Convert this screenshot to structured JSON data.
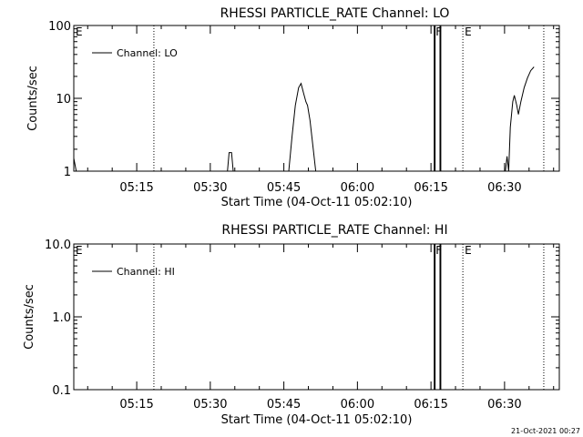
{
  "footer_timestamp": "21-Oct-2021 00:27",
  "chart_data": [
    {
      "type": "line",
      "title": "RHESSI PARTICLE_RATE Channel: LO",
      "xlabel": "Start Time (04-Oct-11 05:02:10)",
      "ylabel": "Counts/sec",
      "y_scale": "log",
      "ylim": [
        1,
        100
      ],
      "yticks": [
        1,
        10,
        100
      ],
      "ytick_labels": [
        "1",
        "10",
        "100"
      ],
      "xlim": [
        "05:02:10",
        "06:41:10"
      ],
      "xticks": [
        "05:15",
        "05:30",
        "05:45",
        "06:00",
        "06:15",
        "06:30"
      ],
      "grid": false,
      "legend_position": "top-left",
      "series": [
        {
          "name": "Channel: LO",
          "points": [
            [
              "05:02:10",
              1.5
            ],
            [
              "05:02:40",
              1.0
            ],
            [
              "05:33:30",
              1.0
            ],
            [
              "05:33:50",
              1.8
            ],
            [
              "05:34:20",
              1.8
            ],
            [
              "05:34:40",
              1.0
            ],
            [
              "05:46:00",
              1.0
            ],
            [
              "05:46:40",
              3.0
            ],
            [
              "05:47:20",
              8.0
            ],
            [
              "05:48:00",
              14.0
            ],
            [
              "05:48:30",
              16.0
            ],
            [
              "05:49:00",
              12.0
            ],
            [
              "05:49:30",
              9.0
            ],
            [
              "05:49:50",
              8.0
            ],
            [
              "05:50:20",
              5.0
            ],
            [
              "05:51:00",
              2.0
            ],
            [
              "05:51:30",
              1.0
            ],
            [
              "06:15:40",
              1.0
            ],
            [
              "06:15:40",
              100.0
            ],
            [
              "06:17:00",
              100.0
            ],
            [
              "06:17:00",
              1.0
            ],
            [
              "06:15:50",
              1.0
            ],
            [
              "06:15:50",
              100.0
            ],
            [
              "06:16:50",
              100.0
            ],
            [
              "06:16:50",
              1.0
            ],
            [
              "06:30:10",
              1.0
            ],
            [
              "06:30:30",
              1.6
            ],
            [
              "06:30:50",
              1.0
            ],
            [
              "06:31:10",
              4.0
            ],
            [
              "06:31:40",
              9.0
            ],
            [
              "06:32:00",
              11.0
            ],
            [
              "06:32:30",
              8.0
            ],
            [
              "06:32:50",
              6.0
            ],
            [
              "06:33:20",
              9.0
            ],
            [
              "06:34:00",
              14.0
            ],
            [
              "06:34:40",
              19.0
            ],
            [
              "06:35:20",
              24.0
            ],
            [
              "06:36:00",
              27.0
            ]
          ]
        }
      ],
      "markers": [
        {
          "label": "E",
          "time": "05:02:10",
          "style": "dotted"
        },
        {
          "label": "",
          "time": "05:18:30",
          "style": "dotted"
        },
        {
          "label": "F",
          "time": "06:16:20",
          "style": "solid"
        },
        {
          "label": "E",
          "time": "06:21:30",
          "style": "dotted"
        },
        {
          "label": "",
          "time": "06:38:00",
          "style": "dotted"
        }
      ]
    },
    {
      "type": "line",
      "title": "RHESSI PARTICLE_RATE Channel: HI",
      "xlabel": "Start Time (04-Oct-11 05:02:10)",
      "ylabel": "Counts/sec",
      "y_scale": "log",
      "ylim": [
        0.1,
        10
      ],
      "yticks": [
        0.1,
        1,
        10
      ],
      "ytick_labels": [
        "0.1",
        "1.0",
        "10.0"
      ],
      "xlim": [
        "05:02:10",
        "06:41:10"
      ],
      "xticks": [
        "05:15",
        "05:30",
        "05:45",
        "06:00",
        "06:15",
        "06:30"
      ],
      "grid": false,
      "legend_position": "top-left",
      "series": [
        {
          "name": "Channel: HI",
          "points": [
            [
              "06:15:40",
              0.1
            ],
            [
              "06:15:40",
              10.0
            ],
            [
              "06:17:00",
              10.0
            ],
            [
              "06:17:00",
              0.1
            ],
            [
              "06:15:50",
              0.1
            ],
            [
              "06:15:50",
              10.0
            ],
            [
              "06:16:50",
              10.0
            ],
            [
              "06:16:50",
              0.1
            ]
          ]
        }
      ],
      "markers": [
        {
          "label": "E",
          "time": "05:02:10",
          "style": "dotted"
        },
        {
          "label": "",
          "time": "05:18:30",
          "style": "dotted"
        },
        {
          "label": "F",
          "time": "06:16:20",
          "style": "solid"
        },
        {
          "label": "E",
          "time": "06:21:30",
          "style": "dotted"
        },
        {
          "label": "",
          "time": "06:38:00",
          "style": "dotted"
        }
      ]
    }
  ]
}
